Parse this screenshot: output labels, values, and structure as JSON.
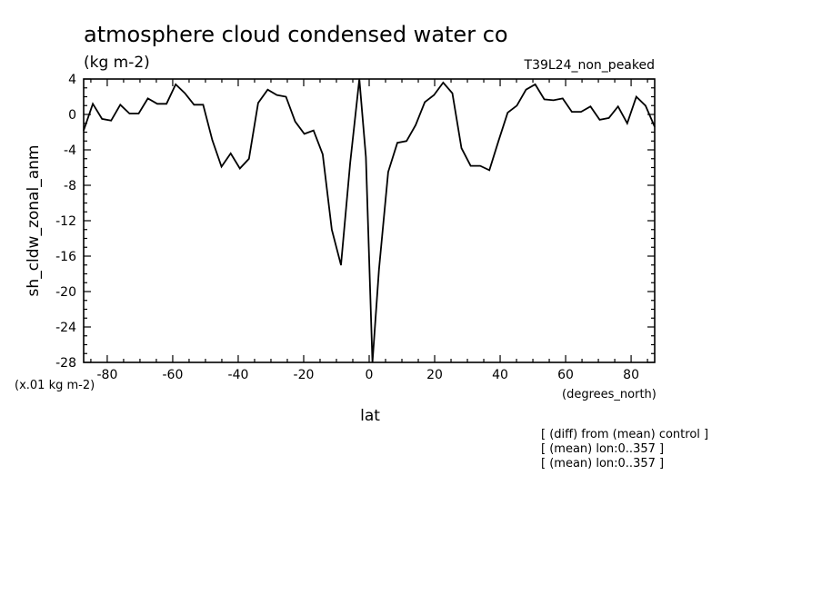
{
  "chart_data": {
    "type": "line",
    "title": "atmosphere cloud condensed water co",
    "units_label": "(kg m-2)",
    "run_label": "T39L24_non_peaked",
    "ylabel": "sh_cldw_zonal_anm",
    "yscale_note": "(x.01 kg m-2)",
    "xlabel": "lat",
    "xunits": "(degrees_north)",
    "xlim": [
      -87.2,
      87.2
    ],
    "ylim": [
      -28,
      4
    ],
    "x_ticks": [
      "-80",
      "-60",
      "-40",
      "-20",
      "0",
      "20",
      "40",
      "60",
      "80"
    ],
    "y_ticks": [
      "4",
      "0",
      "-4",
      "-8",
      "-12",
      "-16",
      "-20",
      "-24",
      "-28"
    ],
    "grid": false,
    "notes": [
      "[ (diff) from (mean) control ]",
      "[ (mean) lon:0..357 ]",
      "[ (mean) lon:0..357 ]"
    ],
    "series": [
      {
        "x": [
          -87.2,
          -84.4,
          -81.6,
          -78.8,
          -76.0,
          -73.2,
          -70.4,
          -67.6,
          -64.7,
          -61.9,
          -59.1,
          -56.3,
          -53.5,
          -50.7,
          -47.9,
          -45.1,
          -42.3,
          -39.5,
          -36.7,
          -33.9,
          -31.0,
          -28.2,
          -25.4,
          -22.6,
          -19.8,
          -17.0,
          -14.2,
          -11.4,
          -8.6,
          -5.8,
          -3.0,
          -1.0,
          1.0,
          3.0,
          5.8,
          8.6,
          11.4,
          14.2,
          17.0,
          19.8,
          22.6,
          25.4,
          28.2,
          31.0,
          33.9,
          36.7,
          39.5,
          42.3,
          45.1,
          47.9,
          50.7,
          53.5,
          56.3,
          59.1,
          61.9,
          64.7,
          67.6,
          70.4,
          73.2,
          76.0,
          78.8,
          81.6,
          84.4,
          87.2
        ],
        "y": [
          -1.8,
          1.2,
          -0.5,
          -0.7,
          1.1,
          0.1,
          0.1,
          1.8,
          1.2,
          1.2,
          3.4,
          2.4,
          1.1,
          1.1,
          -2.9,
          -5.9,
          -4.4,
          -6.1,
          -5.0,
          1.3,
          2.8,
          2.2,
          2.0,
          -0.8,
          -2.2,
          -1.8,
          -4.5,
          -13.0,
          -17.0,
          -5.5,
          4.2,
          -4.8,
          -28.2,
          -17.5,
          -6.5,
          -3.2,
          -3.0,
          -1.2,
          1.4,
          2.2,
          3.6,
          2.4,
          -3.8,
          -5.8,
          -5.8,
          -6.3,
          -3.0,
          0.2,
          1.0,
          2.8,
          3.4,
          1.7,
          1.6,
          1.8,
          0.3,
          0.3,
          0.9,
          -0.6,
          -0.4,
          0.9,
          -1.0,
          2.0,
          1.0,
          -1.4
        ]
      }
    ]
  }
}
